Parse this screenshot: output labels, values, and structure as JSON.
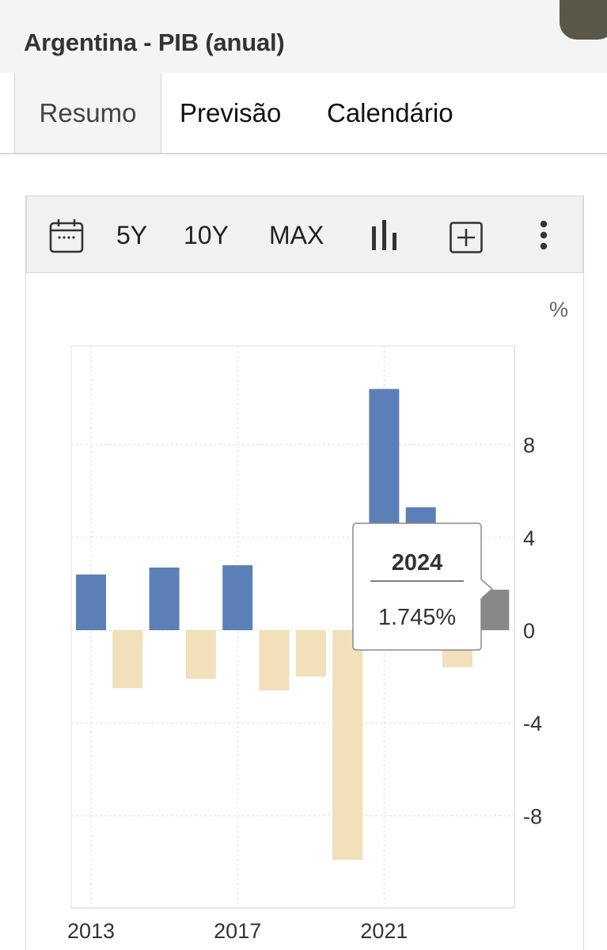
{
  "header": {
    "title": "Argentina - PIB (anual)"
  },
  "tabs": [
    {
      "label": "Resumo",
      "active": true
    },
    {
      "label": "Previsão",
      "active": false
    },
    {
      "label": "Calendário",
      "active": false
    }
  ],
  "toolbar": {
    "calendar_icon": "calendar-icon",
    "range_5y": "5Y",
    "range_10y": "10Y",
    "range_max": "MAX",
    "chart_type_icon": "bar-chart-icon",
    "add_icon": "plus-box-icon",
    "more_icon": "more-vertical-icon"
  },
  "chart_data": {
    "type": "bar",
    "unit": "%",
    "x": [
      2013,
      2014,
      2015,
      2016,
      2017,
      2018,
      2019,
      2020,
      2021,
      2022,
      2023,
      2024
    ],
    "values": [
      2.4,
      -2.5,
      2.7,
      -2.1,
      2.8,
      -2.6,
      -2.0,
      -9.9,
      10.4,
      5.3,
      -1.6,
      1.745
    ],
    "x_ticks": [
      "2013",
      "2017",
      "2021"
    ],
    "y_ticks": [
      8,
      4,
      0,
      -4,
      -8
    ],
    "ylim": [
      -11,
      12
    ],
    "colors": {
      "positive": "#5b80b8",
      "negative": "#f1e0b9",
      "forecast": "#888888"
    },
    "forecast_year": 2024,
    "grid": true,
    "tooltip": {
      "year": "2024",
      "value": "1.745%"
    }
  }
}
